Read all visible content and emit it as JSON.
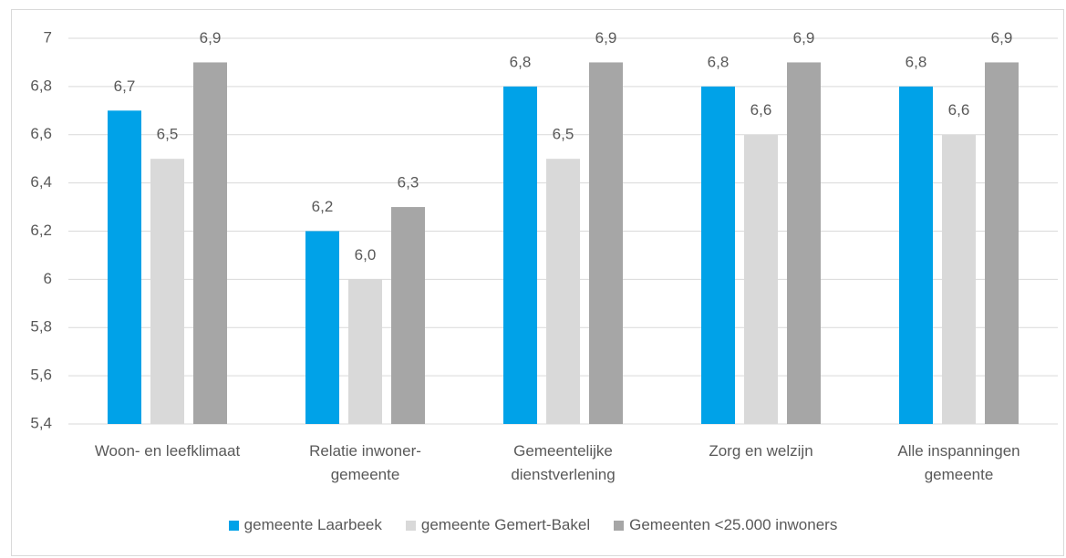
{
  "chart_data": {
    "type": "bar",
    "categories": [
      "Woon- en leefklimaat",
      "Relatie inwoner-\ngemeente",
      "Gemeentelijke\ndienstverlening",
      "Zorg en welzijn",
      "Alle inspanningen\ngemeente"
    ],
    "series": [
      {
        "name": "gemeente Laarbeek",
        "color": "#00a2e8",
        "values": [
          6.7,
          6.2,
          6.8,
          6.8,
          6.8
        ],
        "value_labels": [
          "6,7",
          "6,2",
          "6,8",
          "6,8",
          "6,8"
        ]
      },
      {
        "name": "gemeente Gemert-Bakel",
        "color": "#d9d9d9",
        "values": [
          6.5,
          6.0,
          6.5,
          6.6,
          6.6
        ],
        "value_labels": [
          "6,5",
          "6,0",
          "6,5",
          "6,6",
          "6,6"
        ]
      },
      {
        "name": "Gemeenten <25.000 inwoners",
        "color": "#a6a6a6",
        "values": [
          6.9,
          6.3,
          6.9,
          6.9,
          6.9
        ],
        "value_labels": [
          "6,9",
          "6,3",
          "6,9",
          "6,9",
          "6,9"
        ]
      }
    ],
    "ylim": [
      5.4,
      7
    ],
    "yticks": [
      {
        "value": 5.4,
        "label": "5,4"
      },
      {
        "value": 5.6,
        "label": "5,6"
      },
      {
        "value": 5.8,
        "label": "5,8"
      },
      6,
      {
        "value": 6.2,
        "label": "6,2"
      },
      {
        "value": 6.4,
        "label": "6,4"
      },
      {
        "value": 6.6,
        "label": "6,6"
      },
      {
        "value": 6.8,
        "label": "6,8"
      },
      7
    ],
    "grid": true,
    "legend": "bottom"
  }
}
